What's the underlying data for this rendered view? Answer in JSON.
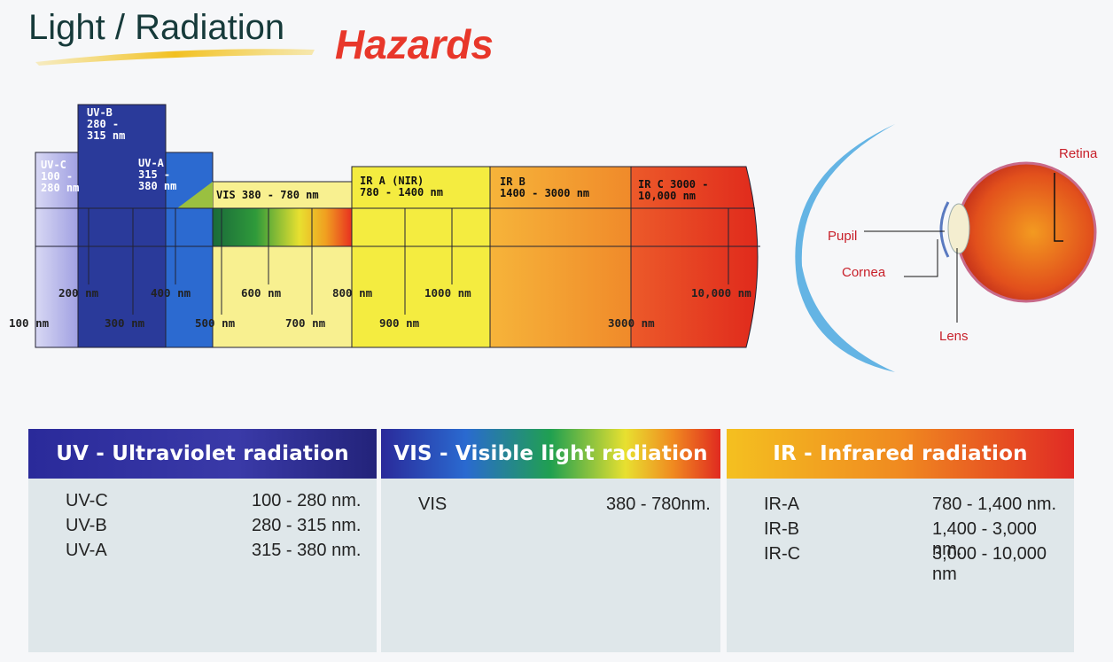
{
  "header": {
    "title": "Light / Radiation",
    "highlight": "Hazards"
  },
  "spectrum": {
    "bands": [
      {
        "lines": [
          "UV-C",
          "100 -",
          "280 nm"
        ]
      },
      {
        "lines": [
          "UV-B",
          "280 -",
          "315 nm"
        ]
      },
      {
        "lines": [
          "UV-A",
          "315 -",
          "380 nm"
        ]
      },
      {
        "lines": [
          "VIS 380 - 780 nm"
        ]
      },
      {
        "lines": [
          "IR A (NIR)",
          "780 - 1400 nm"
        ]
      },
      {
        "lines": [
          "IR B",
          "1400 - 3000 nm"
        ]
      },
      {
        "lines": [
          "IR C 3000 -",
          "10,000 nm"
        ]
      }
    ],
    "ticks": [
      "100 nm",
      "200 nm",
      "300 nm",
      "400 nm",
      "500 nm",
      "600 nm",
      "700 nm",
      "800 nm",
      "900 nm",
      "1000 nm",
      "3000 nm",
      "10,000 nm"
    ]
  },
  "eye": {
    "labels": [
      "Retina",
      "Pupil",
      "Cornea",
      "Lens"
    ]
  },
  "panels": [
    {
      "title": "UV - Ultraviolet  radiation",
      "rows": [
        [
          "UV-C",
          "100 - 280 nm."
        ],
        [
          "UV-B",
          "280 - 315 nm."
        ],
        [
          "UV-A",
          "315 - 380 nm."
        ]
      ]
    },
    {
      "title": "VIS - Visible light radiation",
      "rows": [
        [
          "VIS",
          "380 - 780nm."
        ]
      ]
    },
    {
      "title": "IR - Infrared radiation",
      "rows": [
        [
          "IR-A",
          "780 - 1,400 nm."
        ],
        [
          "IR-B",
          "1,400  - 3,000 nm."
        ],
        [
          "IR-C",
          "3,000 - 10,000 nm"
        ]
      ]
    }
  ]
}
